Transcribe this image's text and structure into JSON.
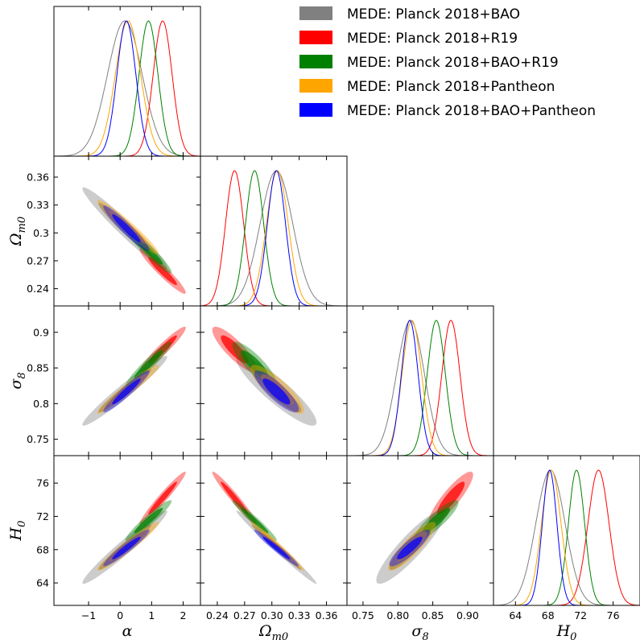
{
  "chart_data": {
    "type": "corner",
    "legend": {
      "placement": "top-right",
      "entries": [
        {
          "label": "MEDE: Planck 2018+BAO",
          "color": "#808080"
        },
        {
          "label": "MEDE: Planck 2018+R19",
          "color": "#ff0000"
        },
        {
          "label": "MEDE: Planck 2018+BAO+R19",
          "color": "#008000"
        },
        {
          "label": "MEDE: Planck 2018+Pantheon",
          "color": "#ffa500"
        },
        {
          "label": "MEDE: Planck 2018+BAO+Pantheon",
          "color": "#0000ff"
        }
      ]
    },
    "parameters": [
      {
        "key": "alpha",
        "label": "α",
        "sub": "",
        "range": [
          -2.1,
          2.55
        ],
        "ticks": [
          -1,
          0,
          1,
          2
        ],
        "tick_labels": [
          "−1",
          "0",
          "1",
          "2"
        ]
      },
      {
        "key": "omega",
        "label": "Ω",
        "sub": "m0",
        "range": [
          0.2215,
          0.3825
        ],
        "ticks": [
          0.24,
          0.27,
          0.3,
          0.33,
          0.36
        ],
        "tick_labels": [
          "0.24",
          "0.27",
          "0.3",
          "0.33",
          "0.36"
        ]
      },
      {
        "key": "sigma8",
        "label": "σ",
        "sub": "8",
        "range": [
          0.727,
          0.937
        ],
        "ticks": [
          0.75,
          0.8,
          0.85,
          0.9
        ],
        "tick_labels": [
          "0.75",
          "0.8",
          "0.85",
          "0.9"
        ]
      },
      {
        "key": "h0",
        "label": "H",
        "sub": "0",
        "range": [
          61.3,
          79.3
        ],
        "ticks": [
          64,
          68,
          72,
          76
        ],
        "tick_labels": [
          "64",
          "68",
          "72",
          "76"
        ]
      }
    ],
    "x_tick_labels": [
      [
        "−1",
        "0",
        "1",
        "2"
      ],
      [
        "0.24",
        "0.27",
        "0.30",
        "0.33",
        "0.36"
      ],
      [
        "0.75",
        "0.80",
        "0.85",
        "0.90"
      ],
      [
        "64",
        "68",
        "72",
        "76"
      ]
    ],
    "series": [
      {
        "color": "#808080",
        "mean": [
          0.15,
          0.305,
          0.818,
          68.3
        ],
        "sd": [
          0.55,
          0.018,
          0.02,
          1.8
        ],
        "corr": [
          [
            1,
            -0.97,
            0.97,
            0.97
          ],
          [
            -0.97,
            1,
            -0.9,
            -0.99
          ],
          [
            0.97,
            -0.9,
            1,
            0.9
          ],
          [
            0.97,
            -0.99,
            0.9,
            1
          ]
        ]
      },
      {
        "color": "#ff0000",
        "mean": [
          1.35,
          0.259,
          0.876,
          74.2
        ],
        "sd": [
          0.3,
          0.01,
          0.013,
          1.3
        ],
        "corr": [
          [
            1,
            -0.95,
            0.95,
            0.97
          ],
          [
            -0.95,
            1,
            -0.85,
            -0.97
          ],
          [
            0.95,
            -0.85,
            1,
            0.88
          ],
          [
            0.97,
            -0.97,
            0.88,
            1
          ]
        ]
      },
      {
        "color": "#008000",
        "mean": [
          0.9,
          0.281,
          0.855,
          71.5
        ],
        "sd": [
          0.3,
          0.01,
          0.013,
          1.0
        ],
        "corr": [
          [
            1,
            -0.95,
            0.95,
            0.95
          ],
          [
            -0.95,
            1,
            -0.85,
            -0.97
          ],
          [
            0.95,
            -0.85,
            1,
            0.88
          ],
          [
            0.95,
            -0.97,
            0.88,
            1
          ]
        ]
      },
      {
        "color": "#ffa500",
        "mean": [
          0.25,
          0.306,
          0.82,
          68.4
        ],
        "sd": [
          0.4,
          0.012,
          0.014,
          1.2
        ],
        "corr": [
          [
            1,
            -0.96,
            0.96,
            0.96
          ],
          [
            -0.96,
            1,
            -0.85,
            -0.98
          ],
          [
            0.96,
            -0.85,
            1,
            0.88
          ],
          [
            0.96,
            -0.98,
            0.88,
            1
          ]
        ]
      },
      {
        "color": "#0000ff",
        "mean": [
          0.2,
          0.305,
          0.817,
          68.2
        ],
        "sd": [
          0.3,
          0.01,
          0.012,
          0.9
        ],
        "corr": [
          [
            1,
            -0.95,
            0.95,
            0.95
          ],
          [
            -0.95,
            1,
            -0.85,
            -0.97
          ],
          [
            0.95,
            -0.85,
            1,
            0.88
          ],
          [
            0.95,
            -0.97,
            0.88,
            1
          ]
        ]
      }
    ]
  }
}
